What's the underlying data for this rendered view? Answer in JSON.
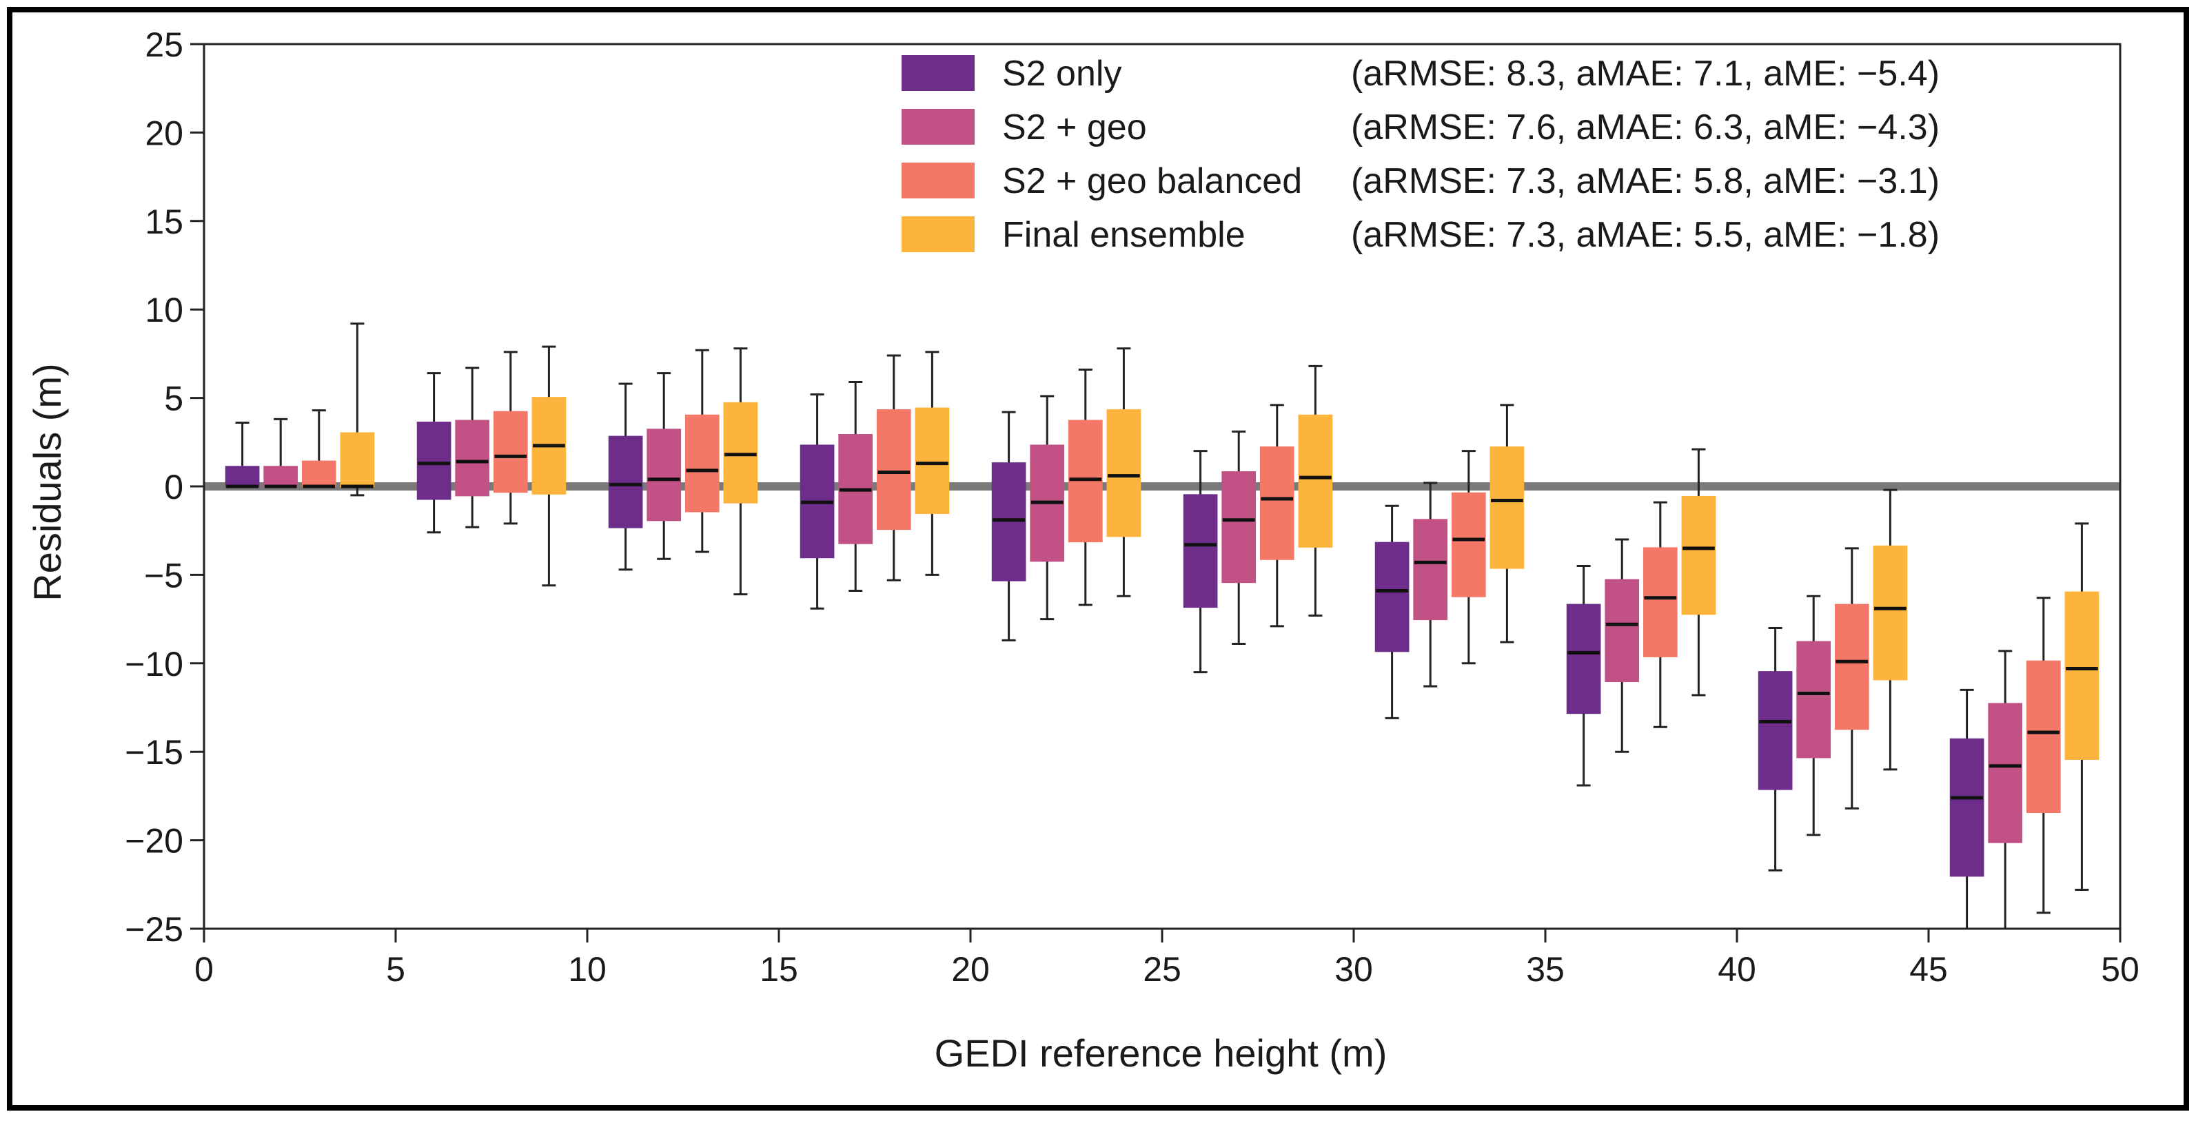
{
  "chart_data": {
    "type": "box",
    "title": "",
    "xlabel": "GEDI reference height (m)",
    "ylabel": "Residuals (m)",
    "xlim": [
      0,
      50
    ],
    "ylim": [
      -25,
      25
    ],
    "xticks": [
      0,
      5,
      10,
      15,
      20,
      25,
      30,
      35,
      40,
      45,
      50
    ],
    "yticks": [
      25,
      20,
      15,
      10,
      5,
      0,
      -5,
      -10,
      -15,
      -20,
      -25
    ],
    "xtick_labels": [
      "0",
      "5",
      "10",
      "15",
      "20",
      "25",
      "30",
      "35",
      "40",
      "45",
      "50"
    ],
    "ytick_labels": [
      "25",
      "20",
      "15",
      "10",
      "5",
      "0",
      "−5",
      "−10",
      "−15",
      "−20",
      "−25"
    ],
    "reference_line": 0,
    "legend_position": "top-right",
    "series": [
      {
        "name": "S2 only",
        "stats": "(aRMSE: 8.3, aMAE: 7.1, aME: −5.4)",
        "color": "#6e2d8b",
        "x": [
          1,
          6,
          11,
          16,
          21,
          26,
          31,
          36,
          41,
          46
        ],
        "boxes": [
          {
            "low": 0,
            "q1": 0,
            "median": 0,
            "q3": 1.1,
            "high": 3.6
          },
          {
            "low": -2.6,
            "q1": -0.7,
            "median": 1.3,
            "q3": 3.6,
            "high": 6.4
          },
          {
            "low": -4.7,
            "q1": -2.3,
            "median": 0.1,
            "q3": 2.8,
            "high": 5.8
          },
          {
            "low": -6.9,
            "q1": -4.0,
            "median": -0.9,
            "q3": 2.3,
            "high": 5.2
          },
          {
            "low": -8.7,
            "q1": -5.3,
            "median": -1.9,
            "q3": 1.3,
            "high": 4.2
          },
          {
            "low": -10.5,
            "q1": -6.8,
            "median": -3.3,
            "q3": -0.5,
            "high": 2.0
          },
          {
            "low": -13.1,
            "q1": -9.3,
            "median": -5.9,
            "q3": -3.2,
            "high": -1.1
          },
          {
            "low": -16.9,
            "q1": -12.8,
            "median": -9.4,
            "q3": -6.7,
            "high": -4.5
          },
          {
            "low": -21.7,
            "q1": -17.1,
            "median": -13.3,
            "q3": -10.5,
            "high": -8.0
          },
          {
            "low": -25.0,
            "q1": -22.0,
            "median": -17.6,
            "q3": -14.3,
            "high": -11.5
          }
        ]
      },
      {
        "name": "S2 + geo",
        "stats": "(aRMSE: 7.6, aMAE: 6.3, aME: −4.3)",
        "color": "#c25185",
        "x": [
          2,
          7,
          12,
          17,
          22,
          27,
          32,
          37,
          42,
          47
        ],
        "boxes": [
          {
            "low": 0,
            "q1": 0,
            "median": 0,
            "q3": 1.1,
            "high": 3.8
          },
          {
            "low": -2.3,
            "q1": -0.5,
            "median": 1.4,
            "q3": 3.7,
            "high": 6.7
          },
          {
            "low": -4.1,
            "q1": -1.9,
            "median": 0.4,
            "q3": 3.2,
            "high": 6.4
          },
          {
            "low": -5.9,
            "q1": -3.2,
            "median": -0.2,
            "q3": 2.9,
            "high": 5.9
          },
          {
            "low": -7.5,
            "q1": -4.2,
            "median": -0.9,
            "q3": 2.3,
            "high": 5.1
          },
          {
            "low": -8.9,
            "q1": -5.4,
            "median": -1.9,
            "q3": 0.8,
            "high": 3.1
          },
          {
            "low": -11.3,
            "q1": -7.5,
            "median": -4.3,
            "q3": -1.9,
            "high": 0.2
          },
          {
            "low": -15.0,
            "q1": -11.0,
            "median": -7.8,
            "q3": -5.3,
            "high": -3.0
          },
          {
            "low": -19.7,
            "q1": -15.3,
            "median": -11.7,
            "q3": -8.8,
            "high": -6.2
          },
          {
            "low": -25.0,
            "q1": -20.1,
            "median": -15.8,
            "q3": -12.3,
            "high": -9.3
          }
        ]
      },
      {
        "name": "S2 + geo balanced",
        "stats": "(aRMSE: 7.3, aMAE: 5.8, aME: −3.1)",
        "color": "#f47868",
        "x": [
          3,
          8,
          13,
          18,
          23,
          28,
          33,
          38,
          43,
          48
        ],
        "boxes": [
          {
            "low": 0,
            "q1": 0,
            "median": 0,
            "q3": 1.4,
            "high": 4.3
          },
          {
            "low": -2.1,
            "q1": -0.3,
            "median": 1.7,
            "q3": 4.2,
            "high": 7.6
          },
          {
            "low": -3.7,
            "q1": -1.4,
            "median": 0.9,
            "q3": 4.0,
            "high": 7.7
          },
          {
            "low": -5.3,
            "q1": -2.4,
            "median": 0.8,
            "q3": 4.3,
            "high": 7.4
          },
          {
            "low": -6.7,
            "q1": -3.1,
            "median": 0.4,
            "q3": 3.7,
            "high": 6.6
          },
          {
            "low": -7.9,
            "q1": -4.1,
            "median": -0.7,
            "q3": 2.2,
            "high": 4.6
          },
          {
            "low": -10.0,
            "q1": -6.2,
            "median": -3.0,
            "q3": -0.4,
            "high": 2.0
          },
          {
            "low": -13.6,
            "q1": -9.6,
            "median": -6.3,
            "q3": -3.5,
            "high": -0.9
          },
          {
            "low": -18.2,
            "q1": -13.7,
            "median": -9.9,
            "q3": -6.7,
            "high": -3.5
          },
          {
            "low": -24.1,
            "q1": -18.4,
            "median": -13.9,
            "q3": -9.9,
            "high": -6.3
          }
        ]
      },
      {
        "name": "Final ensemble",
        "stats": "(aRMSE: 7.3, aMAE: 5.5, aME: −1.8)",
        "color": "#fdb43d",
        "x": [
          4,
          9,
          14,
          19,
          24,
          29,
          34,
          39,
          44,
          49
        ],
        "boxes": [
          {
            "low": -0.5,
            "q1": 0,
            "median": 0,
            "q3": 3.0,
            "high": 9.2
          },
          {
            "low": -5.6,
            "q1": -0.4,
            "median": 2.3,
            "q3": 5.0,
            "high": 7.9
          },
          {
            "low": -6.1,
            "q1": -0.9,
            "median": 1.8,
            "q3": 4.7,
            "high": 7.8
          },
          {
            "low": -5.0,
            "q1": -1.5,
            "median": 1.3,
            "q3": 4.4,
            "high": 7.6
          },
          {
            "low": -6.2,
            "q1": -2.8,
            "median": 0.6,
            "q3": 4.3,
            "high": 7.8
          },
          {
            "low": -7.3,
            "q1": -3.4,
            "median": 0.5,
            "q3": 4.0,
            "high": 6.8
          },
          {
            "low": -8.8,
            "q1": -4.6,
            "median": -0.8,
            "q3": 2.2,
            "high": 4.6
          },
          {
            "low": -11.8,
            "q1": -7.2,
            "median": -3.5,
            "q3": -0.6,
            "high": 2.1
          },
          {
            "low": -16.0,
            "q1": -10.9,
            "median": -6.9,
            "q3": -3.4,
            "high": -0.2
          },
          {
            "low": -22.8,
            "q1": -15.4,
            "median": -10.3,
            "q3": -6.0,
            "high": -2.1
          }
        ]
      }
    ]
  }
}
